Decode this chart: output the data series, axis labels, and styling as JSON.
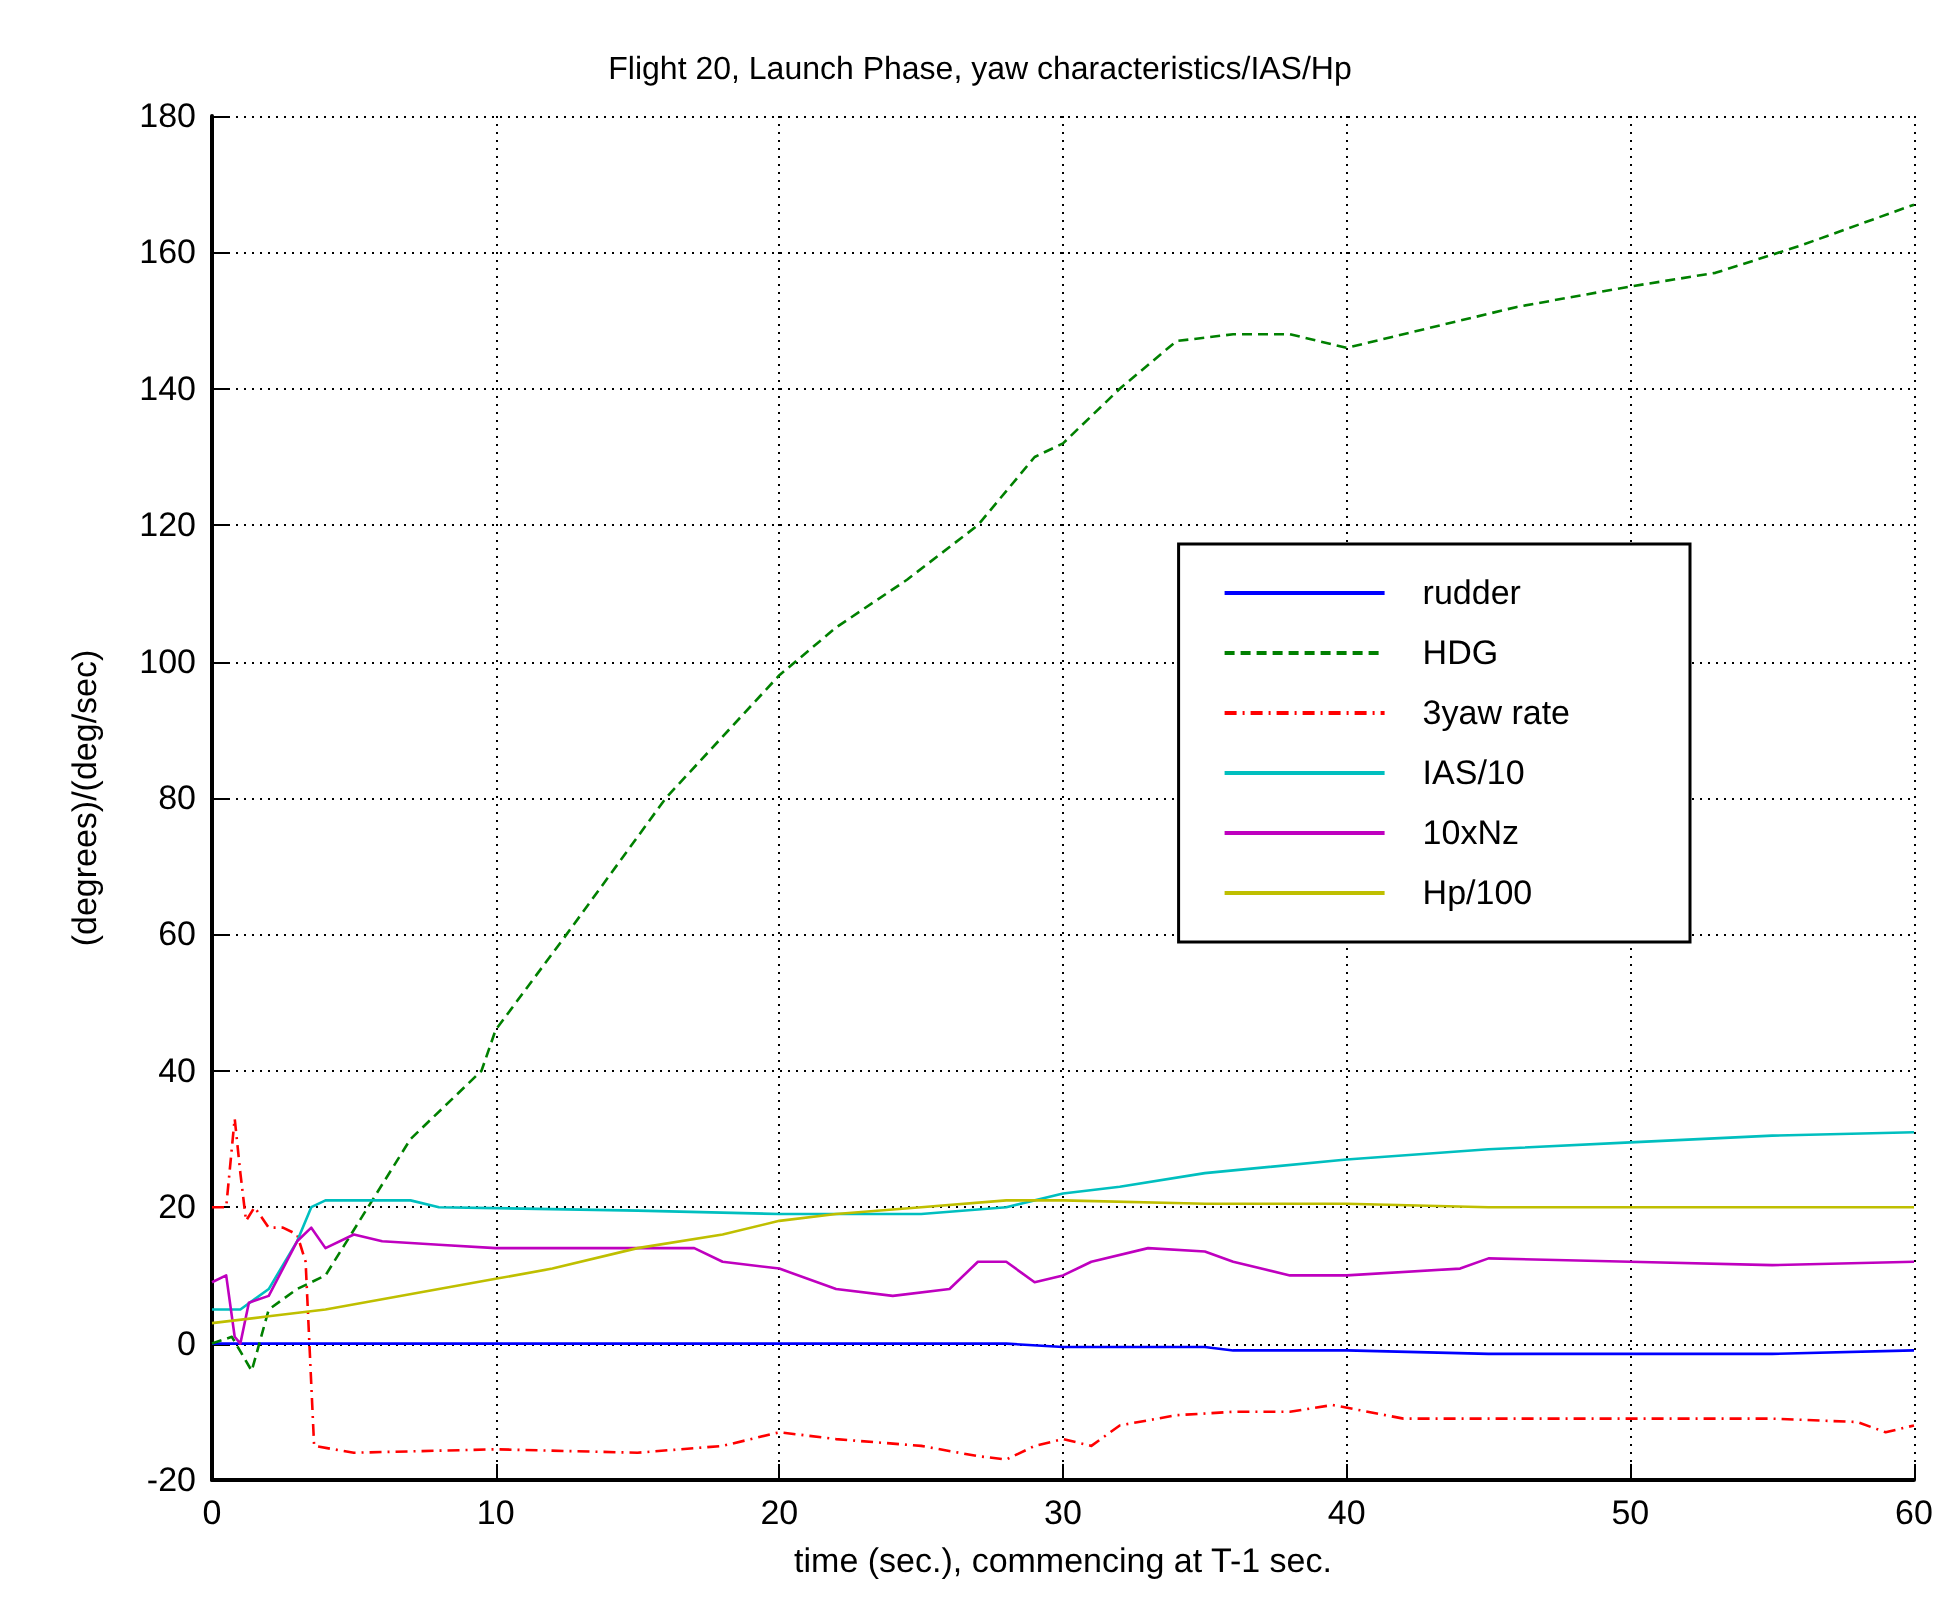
{
  "chart_data": {
    "type": "line",
    "title": "Flight 20, Launch Phase, yaw characteristics/IAS/Hp",
    "xlabel": "time (sec.), commencing at T-1 sec.",
    "ylabel": "(degrees)/(deg/sec)",
    "xlim": [
      0,
      60
    ],
    "ylim": [
      -20,
      180
    ],
    "xticks": [
      0,
      10,
      20,
      30,
      40,
      50,
      60
    ],
    "yticks": [
      -20,
      0,
      20,
      40,
      60,
      80,
      100,
      120,
      140,
      160,
      180
    ],
    "grid": true,
    "legend": "right",
    "marker": "none",
    "series": [
      {
        "name": "rudder",
        "color": "#0000ff",
        "line_style": "solid",
        "x": [
          0,
          10,
          20,
          28,
          30,
          35,
          36,
          40,
          45,
          50,
          55,
          60
        ],
        "values": [
          0,
          0,
          0,
          0,
          -0.5,
          -0.5,
          -1,
          -1,
          -1.5,
          -1.5,
          -1.5,
          -1
        ]
      },
      {
        "name": "HDG",
        "color": "#008000",
        "line_style": "dashed",
        "x": [
          0,
          0.7,
          1.4,
          2,
          3,
          4,
          5.5,
          7,
          9.5,
          10,
          12.5,
          16,
          20,
          22,
          24.5,
          27,
          29,
          30,
          32,
          34,
          36,
          38,
          40,
          44,
          46,
          50,
          53,
          56,
          60
        ],
        "values": [
          0,
          1,
          -4,
          5,
          8,
          10,
          20,
          30,
          40,
          46,
          60,
          80,
          98,
          105,
          112,
          120,
          130,
          132,
          140,
          147,
          148,
          148,
          146,
          150,
          152,
          155,
          157,
          161,
          167
        ]
      },
      {
        "name": "3yaw rate",
        "color": "#ff0000",
        "line_style": "dashdot",
        "x": [
          0,
          0.5,
          0.8,
          1,
          1.2,
          1.5,
          2,
          2.5,
          3,
          3.3,
          3.6,
          5,
          10,
          15,
          18,
          20,
          22,
          25,
          27,
          28,
          29,
          30,
          31,
          32,
          34,
          36,
          38,
          39.5,
          42,
          45,
          50,
          55,
          58,
          59,
          60
        ],
        "values": [
          20,
          20,
          33,
          25,
          18,
          20,
          17,
          17,
          16,
          12,
          -15,
          -16,
          -15.5,
          -16,
          -15,
          -13,
          -14,
          -15,
          -16.5,
          -17,
          -15,
          -14,
          -15,
          -12,
          -10.5,
          -10,
          -10,
          -9,
          -11,
          -11,
          -11,
          -11,
          -11.5,
          -13,
          -12
        ]
      },
      {
        "name": "IAS/10",
        "color": "#00bfbf",
        "line_style": "solid",
        "x": [
          0,
          1,
          2,
          3,
          3.5,
          4,
          7,
          8,
          15,
          20,
          25,
          28,
          30,
          32,
          35,
          40,
          45,
          50,
          55,
          60
        ],
        "values": [
          5,
          5,
          8,
          15,
          20,
          21,
          21,
          20,
          19.5,
          19,
          19,
          20,
          22,
          23,
          25,
          27,
          28.5,
          29.5,
          30.5,
          31
        ]
      },
      {
        "name": "10xNz",
        "color": "#bf00bf",
        "line_style": "solid",
        "x": [
          0,
          0.5,
          0.8,
          1,
          1.3,
          2,
          2.5,
          3,
          3.5,
          4,
          5,
          6,
          8,
          10,
          15,
          17,
          18,
          20,
          22,
          24,
          26,
          27,
          28,
          29,
          30,
          31,
          33,
          35,
          36,
          38,
          40,
          44,
          45,
          50,
          55,
          60
        ],
        "values": [
          9,
          10,
          1,
          0,
          6,
          7,
          11,
          15,
          17,
          14,
          16,
          15,
          14.5,
          14,
          14,
          14,
          12,
          11,
          8,
          7,
          8,
          12,
          12,
          9,
          10,
          12,
          14,
          13.5,
          12,
          10,
          10,
          11,
          12.5,
          12,
          11.5,
          12
        ]
      },
      {
        "name": "Hp/100",
        "color": "#bfbf00",
        "line_style": "solid",
        "x": [
          0,
          2,
          4,
          6,
          8,
          10,
          12,
          15,
          18,
          20,
          22,
          25,
          28,
          30,
          35,
          40,
          45,
          50,
          60
        ],
        "values": [
          3,
          4,
          5,
          6.5,
          8,
          9.5,
          11,
          14,
          16,
          18,
          19,
          20,
          21,
          21,
          20.5,
          20.5,
          20,
          20,
          20
        ]
      }
    ]
  }
}
